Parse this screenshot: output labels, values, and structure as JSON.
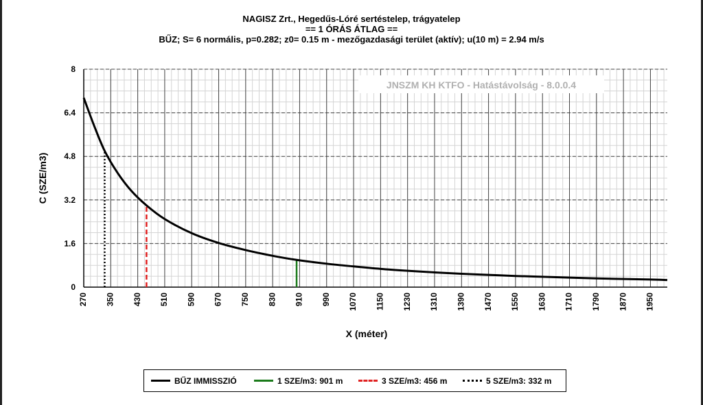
{
  "chart_data": {
    "type": "line",
    "title": "NAGISZ Zrt., Hegedűs-Lóré sertéstelep, trágyatelep",
    "subtitle": "== 1 ÓRÁS ÁTLAG ==",
    "subtitle2": "BŰZ; S= 6 normális, p=0.282; z0= 0.15 m - mezőgazdasági terület (aktív); u(10 m) = 2.94 m/s",
    "watermark": "JNSZM KH KTFO - Hatástávolság  - 8.0.0.4",
    "xlabel": "X (méter)",
    "ylabel": "C (SZE/m3)",
    "xlim": [
      270,
      2000
    ],
    "ylim": [
      0,
      8
    ],
    "xticks": [
      270,
      350,
      430,
      510,
      590,
      670,
      750,
      830,
      910,
      990,
      1070,
      1150,
      1230,
      1310,
      1390,
      1470,
      1550,
      1630,
      1710,
      1790,
      1870,
      1950
    ],
    "yticks": [
      0,
      1.6,
      3.2,
      4.8,
      6.4,
      8
    ],
    "ytick_labels": [
      "0",
      "1.6",
      "3.2",
      "4.8",
      "6.4",
      "8"
    ],
    "grid": true,
    "legend_position": "bottom",
    "series": [
      {
        "name": "BŰZ IMMISSZIÓ",
        "color": "#000000",
        "style": "solid",
        "x": [
          270,
          300,
          332,
          370,
          410,
          456,
          510,
          590,
          670,
          750,
          830,
          901,
          990,
          1070,
          1150,
          1230,
          1310,
          1390,
          1470,
          1550,
          1630,
          1710,
          1790,
          1870,
          1950,
          2000
        ],
        "y": [
          6.95,
          5.95,
          5.0,
          4.2,
          3.55,
          3.0,
          2.5,
          1.98,
          1.62,
          1.36,
          1.15,
          1.0,
          0.86,
          0.76,
          0.67,
          0.6,
          0.54,
          0.49,
          0.45,
          0.41,
          0.38,
          0.35,
          0.32,
          0.3,
          0.28,
          0.26
        ]
      }
    ],
    "markers": [
      {
        "name": "1 SZE/m3: 901 m",
        "x": 901,
        "y": 1,
        "color": "#1a7a1a",
        "style": "solid"
      },
      {
        "name": "3 SZE/m3: 456 m",
        "x": 456,
        "y": 3,
        "color": "#e02020",
        "style": "dashed"
      },
      {
        "name": "5 SZE/m3: 332 m",
        "x": 332,
        "y": 5,
        "color": "#000000",
        "style": "dotted"
      }
    ]
  }
}
